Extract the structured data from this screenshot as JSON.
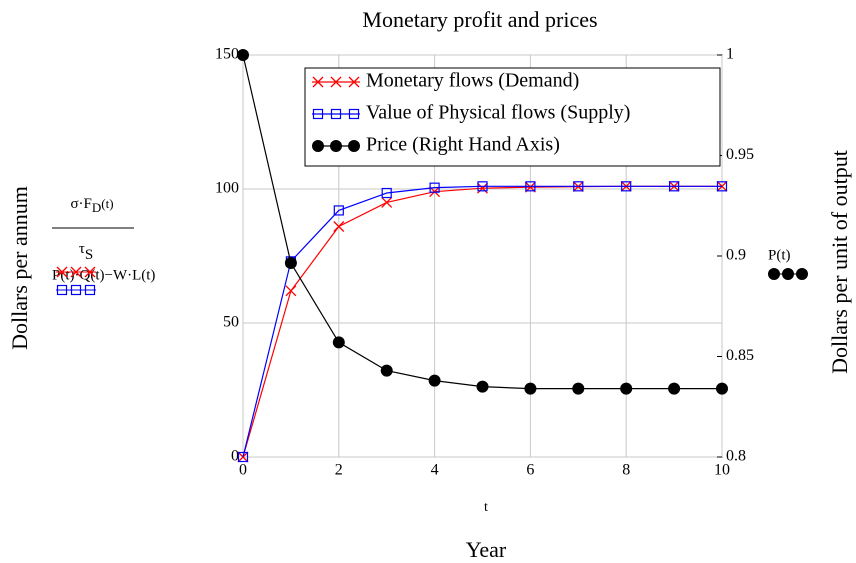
{
  "chart_data": {
    "type": "line",
    "title": "Monetary profit and prices",
    "x_label": "t",
    "x_caption": "Year",
    "y_label": "Dollars per annum",
    "y2_label": "Dollars per unit of output",
    "left_expr_num": {
      "main": "σ·F",
      "sub": "D",
      "tail": "(t)"
    },
    "left_expr_den": {
      "main": "τ",
      "sub": "S"
    },
    "left_expr_2": "P(t)·Q(t)−W·L(t)",
    "right_expr": "P(t)",
    "x": [
      0,
      1,
      2,
      3,
      4,
      5,
      6,
      7,
      8,
      9,
      10
    ],
    "xlim": [
      0,
      10
    ],
    "xticks": [
      0,
      2,
      4,
      6,
      8,
      10
    ],
    "ylim": [
      0,
      150
    ],
    "yticks": [
      0,
      50,
      100,
      150
    ],
    "y2lim": [
      0.8,
      1
    ],
    "y2ticks": [
      0.8,
      0.85,
      0.9,
      0.95,
      1
    ],
    "grid": true,
    "legend": "top-right",
    "series": [
      {
        "name": "Monetary flows (Demand)",
        "color": "#ff0000",
        "marker": "x",
        "values": [
          0,
          62,
          86,
          95,
          99,
          100.3,
          100.7,
          100.9,
          101,
          101,
          101
        ]
      },
      {
        "name": "Value of Physical flows (Supply)",
        "color": "#0000ff",
        "marker": "square",
        "values": [
          0,
          73,
          92,
          98.5,
          100.5,
          101,
          101,
          101,
          101,
          101,
          101
        ]
      },
      {
        "name": "Price (Right Hand Axis)",
        "color": "#000000",
        "marker": "circle",
        "axis": "y2",
        "values": [
          1,
          0.8965,
          0.857,
          0.843,
          0.838,
          0.835,
          0.834,
          0.834,
          0.834,
          0.834,
          0.834
        ]
      }
    ]
  }
}
